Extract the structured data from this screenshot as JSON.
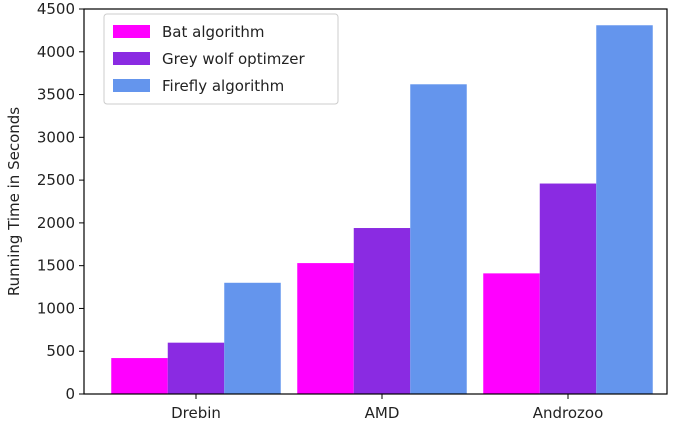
{
  "chart_data": {
    "type": "bar",
    "title": "",
    "xlabel": "",
    "ylabel": "Running Time in Seconds",
    "categories": [
      "Drebin",
      "AMD",
      "Androzoo"
    ],
    "series": [
      {
        "name": "Bat algorithm",
        "color": "#ff00ff",
        "values": [
          420,
          1530,
          1410
        ]
      },
      {
        "name": "Grey wolf optimzer",
        "color": "#8a2be2",
        "values": [
          600,
          1940,
          2460
        ]
      },
      {
        "name": "Firefly algorithm",
        "color": "#6495ed",
        "values": [
          1300,
          3620,
          4310
        ]
      }
    ],
    "ylim": [
      0,
      4500
    ],
    "yticks": [
      0,
      500,
      1000,
      1500,
      2000,
      2500,
      3000,
      3500,
      4000,
      4500
    ],
    "legend_position": "top-left",
    "grid": false
  }
}
